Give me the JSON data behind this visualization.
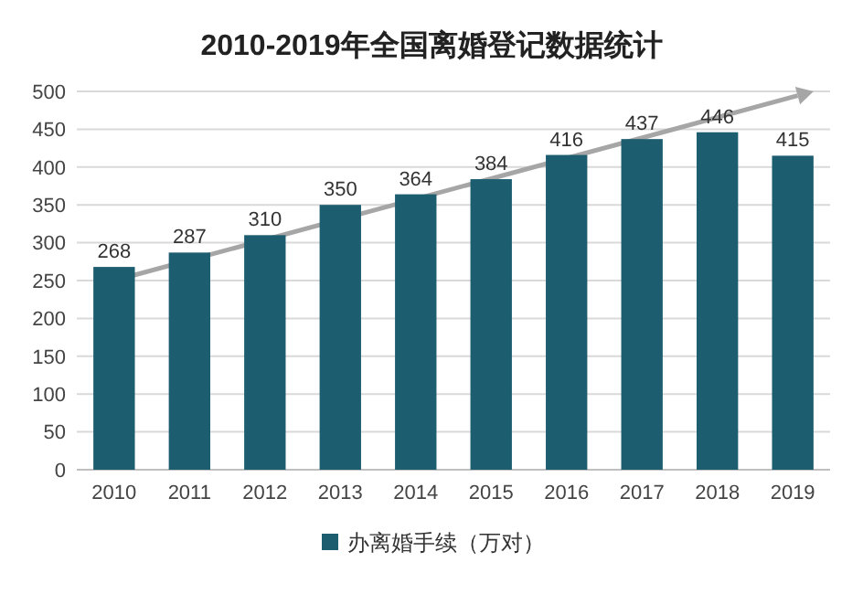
{
  "chart_data": {
    "type": "bar",
    "title": "2010-2019年全国离婚登记数据统计",
    "categories": [
      "2010",
      "2011",
      "2012",
      "2013",
      "2014",
      "2015",
      "2016",
      "2017",
      "2018",
      "2019"
    ],
    "series": [
      {
        "name": "办离婚手续（万对）",
        "color": "#1d5d70",
        "values": [
          268,
          287,
          310,
          350,
          364,
          384,
          416,
          437,
          446,
          415
        ]
      }
    ],
    "ylim": [
      0,
      500
    ],
    "yticks": [
      0,
      50,
      100,
      150,
      200,
      250,
      300,
      350,
      400,
      450,
      500
    ],
    "grid": "y",
    "legend": "bottom",
    "data_labels": true
  }
}
